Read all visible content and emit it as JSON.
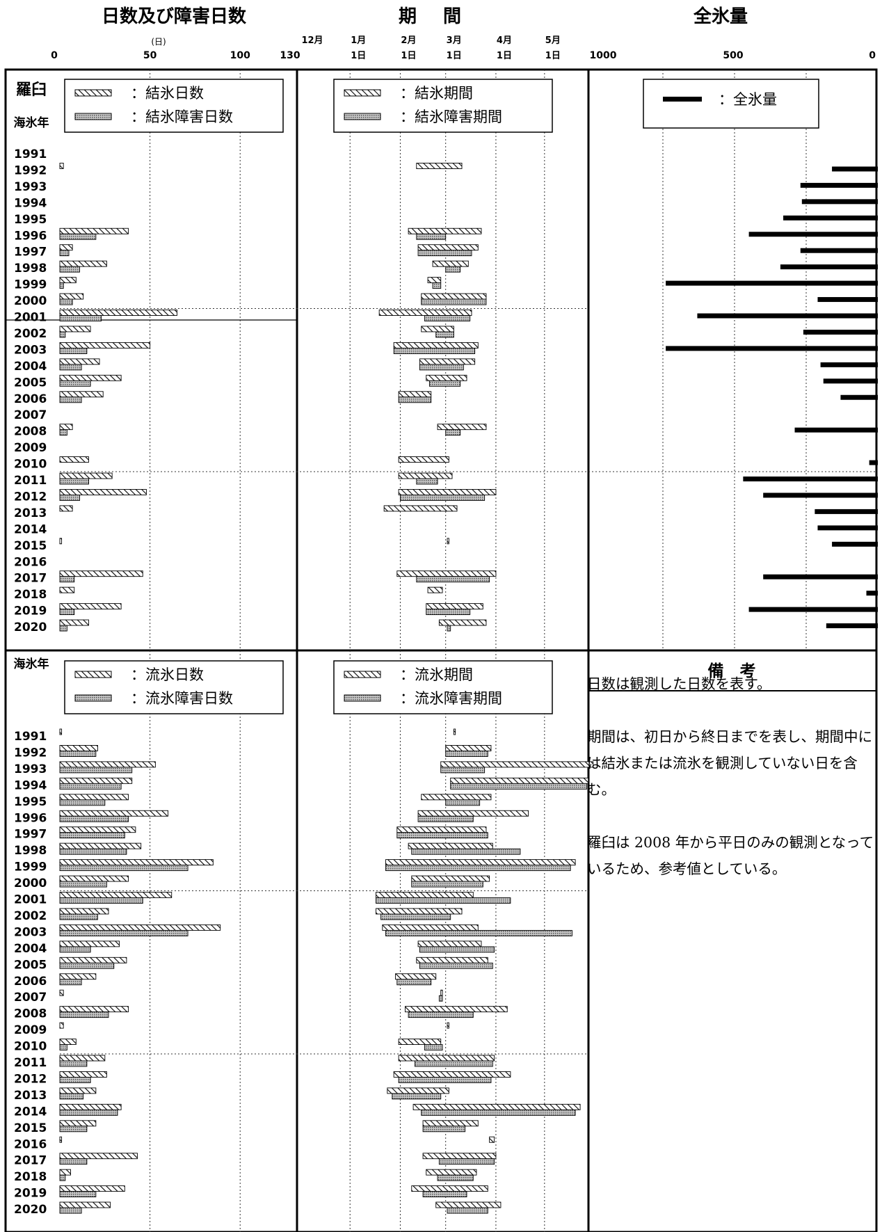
{
  "headings": {
    "days": "日数及び障害日数",
    "period_a": "期",
    "period_b": "間",
    "total": "全氷量"
  },
  "axis_labels": {
    "days_unit": "(日)",
    "days_ticks": [
      "0",
      "50",
      "100",
      "130"
    ],
    "month_ticks": [
      [
        "12月",
        ""
      ],
      [
        "1月",
        "1日"
      ],
      [
        "2月",
        "1日"
      ],
      [
        "3月",
        "1日"
      ],
      [
        "4月",
        "1日"
      ],
      [
        "5月",
        "1日"
      ]
    ],
    "total_ticks": [
      "1000",
      "500",
      "0"
    ]
  },
  "row_labels": {
    "station": "羅臼",
    "season_year_top": "海氷年",
    "season_year_bottom": "海氷年"
  },
  "legends": {
    "freeze_days": "：結氷日数",
    "freeze_obstacle_days": "：結氷障害日数",
    "freeze_period": "：結氷期間",
    "freeze_obstacle_period": "：結氷障害期間",
    "total_ice": "：全氷量",
    "drift_days": "：流氷日数",
    "drift_obstacle_days": "：流氷障害日数",
    "drift_period": "：流氷期間",
    "drift_obstacle_period": "：流氷障害期間"
  },
  "remarks": {
    "title": "備　考",
    "line1": "日数は観測した日数を表す。",
    "line2": "期間は、初日から終日までを表し、期間中には結氷または流氷を観測していない日を含む。",
    "line3": "羅臼は 2008 年から平日のみの観測となっているため、参考値としている。"
  },
  "colors": {
    "frame": "#000000",
    "grid": "#333333",
    "hatch_stroke": "#000000",
    "obstacle_fill": "#8a8a8a"
  },
  "chart_data": [
    {
      "type": "bar",
      "title": "日数及び障害日数 — 結氷",
      "xlabel": "(日)",
      "xlim": [
        0,
        130
      ],
      "categories": [
        "1991",
        "1992",
        "1993",
        "1994",
        "1995",
        "1996",
        "1997",
        "1998",
        "1999",
        "2000",
        "2001",
        "2002",
        "2003",
        "2004",
        "2005",
        "2006",
        "2007",
        "2008",
        "2009",
        "2010",
        "2011",
        "2012",
        "2013",
        "2014",
        "2015",
        "2016",
        "2017",
        "2018",
        "2019",
        "2020"
      ],
      "series": [
        {
          "name": "結氷日数",
          "values": [
            0,
            2,
            0,
            0,
            0,
            38,
            7,
            26,
            9,
            13,
            65,
            17,
            50,
            22,
            34,
            24,
            0,
            7,
            0,
            16,
            29,
            48,
            7,
            0,
            1,
            0,
            46,
            8,
            34,
            16
          ]
        },
        {
          "name": "結氷障害日数",
          "values": [
            0,
            0,
            0,
            0,
            0,
            20,
            5,
            11,
            2,
            7,
            23,
            3,
            15,
            12,
            17,
            12,
            0,
            4,
            0,
            0,
            16,
            11,
            0,
            0,
            0,
            0,
            8,
            0,
            8,
            4
          ]
        }
      ]
    },
    {
      "type": "bar",
      "title": "期間 — 結氷",
      "xlabel": "",
      "xlim": [
        "12-01",
        "05-31"
      ],
      "categories": [
        "1991",
        "1992",
        "1993",
        "1994",
        "1995",
        "1996",
        "1997",
        "1998",
        "1999",
        "2000",
        "2001",
        "2002",
        "2003",
        "2004",
        "2005",
        "2006",
        "2007",
        "2008",
        "2009",
        "2010",
        "2011",
        "2012",
        "2013",
        "2014",
        "2015",
        "2016",
        "2017",
        "2018",
        "2019",
        "2020"
      ],
      "series": [
        {
          "name": "結氷期間",
          "values": [
            null,
            [
              "02-11",
              "03-11"
            ],
            null,
            null,
            null,
            [
              "02-06",
              "03-23"
            ],
            [
              "02-12",
              "03-21"
            ],
            [
              "02-21",
              "03-15"
            ],
            [
              "02-18",
              "02-26"
            ],
            [
              "02-14",
              "03-26"
            ],
            [
              "01-19",
              "03-17"
            ],
            [
              "02-14",
              "03-06"
            ],
            [
              "01-28",
              "03-21"
            ],
            [
              "02-13",
              "03-19"
            ],
            [
              "02-17",
              "03-14"
            ],
            [
              "01-31",
              "02-20"
            ],
            null,
            [
              "02-24",
              "03-26"
            ],
            null,
            [
              "01-31",
              "03-03"
            ],
            [
              "01-31",
              "03-05"
            ],
            [
              "01-31",
              "04-01"
            ],
            [
              "01-22",
              "03-08"
            ],
            null,
            [
              "03-02",
              "03-03"
            ],
            null,
            [
              "01-30",
              "04-01"
            ],
            [
              "02-18",
              "02-27"
            ],
            [
              "02-17",
              "03-24"
            ],
            [
              "02-25",
              "03-26"
            ]
          ]
        },
        {
          "name": "結氷障害期間",
          "values": [
            null,
            null,
            null,
            null,
            null,
            [
              "02-11",
              "03-01"
            ],
            [
              "02-12",
              "03-17"
            ],
            [
              "03-01",
              "03-10"
            ],
            [
              "02-21",
              "02-26"
            ],
            [
              "02-14",
              "03-26"
            ],
            [
              "02-16",
              "03-16"
            ],
            [
              "02-23",
              "03-06"
            ],
            [
              "01-28",
              "03-19"
            ],
            [
              "02-13",
              "03-12"
            ],
            [
              "02-19",
              "03-10"
            ],
            [
              "01-31",
              "02-20"
            ],
            null,
            [
              "03-01",
              "03-10"
            ],
            null,
            null,
            [
              "02-11",
              "02-24"
            ],
            [
              "02-01",
              "03-25"
            ],
            null,
            null,
            null,
            null,
            [
              "02-11",
              "03-28"
            ],
            null,
            [
              "02-17",
              "03-16"
            ],
            [
              "03-02",
              "03-04"
            ]
          ]
        }
      ]
    },
    {
      "type": "bar",
      "title": "全氷量",
      "xlabel": "",
      "xlim": [
        1000,
        0
      ],
      "categories": [
        "1991",
        "1992",
        "1993",
        "1994",
        "1995",
        "1996",
        "1997",
        "1998",
        "1999",
        "2000",
        "2001",
        "2002",
        "2003",
        "2004",
        "2005",
        "2006",
        "2007",
        "2008",
        "2009",
        "2010",
        "2011",
        "2012",
        "2013",
        "2014",
        "2015",
        "2016",
        "2017",
        "2018",
        "2019",
        "2020"
      ],
      "series": [
        {
          "name": "全氷量",
          "values": [
            0,
            160,
            270,
            265,
            330,
            450,
            270,
            340,
            740,
            210,
            630,
            260,
            740,
            200,
            190,
            130,
            0,
            290,
            0,
            30,
            470,
            400,
            220,
            210,
            160,
            0,
            400,
            40,
            450,
            180
          ]
        }
      ]
    },
    {
      "type": "bar",
      "title": "日数及び障害日数 — 流氷",
      "xlabel": "(日)",
      "xlim": [
        0,
        130
      ],
      "categories": [
        "1991",
        "1992",
        "1993",
        "1994",
        "1995",
        "1996",
        "1997",
        "1998",
        "1999",
        "2000",
        "2001",
        "2002",
        "2003",
        "2004",
        "2005",
        "2006",
        "2007",
        "2008",
        "2009",
        "2010",
        "2011",
        "2012",
        "2013",
        "2014",
        "2015",
        "2016",
        "2017",
        "2018",
        "2019",
        "2020"
      ],
      "series": [
        {
          "name": "流氷日数",
          "values": [
            1,
            21,
            53,
            40,
            38,
            60,
            42,
            45,
            85,
            38,
            62,
            27,
            89,
            33,
            37,
            20,
            2,
            38,
            2,
            9,
            25,
            26,
            20,
            34,
            20,
            1,
            43,
            6,
            36,
            28
          ]
        },
        {
          "name": "流氷障害日数",
          "values": [
            0,
            20,
            40,
            34,
            25,
            38,
            36,
            37,
            71,
            26,
            46,
            21,
            71,
            17,
            30,
            12,
            0,
            27,
            0,
            4,
            15,
            17,
            13,
            32,
            15,
            0,
            15,
            3,
            20,
            12
          ]
        }
      ]
    },
    {
      "type": "bar",
      "title": "期間 — 流氷",
      "xlabel": "",
      "xlim": [
        "12-01",
        "05-31"
      ],
      "categories": [
        "1991",
        "1992",
        "1993",
        "1994",
        "1995",
        "1996",
        "1997",
        "1998",
        "1999",
        "2000",
        "2001",
        "2002",
        "2003",
        "2004",
        "2005",
        "2006",
        "2007",
        "2008",
        "2009",
        "2010",
        "2011",
        "2012",
        "2013",
        "2014",
        "2015",
        "2016",
        "2017",
        "2018",
        "2019",
        "2020"
      ],
      "series": [
        {
          "name": "流氷期間",
          "values": [
            [
              "03-06",
              "03-07"
            ],
            [
              "03-01",
              "03-29"
            ],
            [
              "02-26",
              "05-31"
            ],
            [
              "03-04",
              "05-28"
            ],
            [
              "02-14",
              "03-29"
            ],
            [
              "02-12",
              "04-21"
            ],
            [
              "01-30",
              "03-26"
            ],
            [
              "02-06",
              "03-30"
            ],
            [
              "01-23",
              "05-20"
            ],
            [
              "02-08",
              "03-28"
            ],
            [
              "01-17",
              "03-18"
            ],
            [
              "01-17",
              "03-11"
            ],
            [
              "01-21",
              "03-21"
            ],
            [
              "02-12",
              "03-23"
            ],
            [
              "02-11",
              "03-27"
            ],
            [
              "01-29",
              "02-23"
            ],
            [
              "02-26",
              "02-27"
            ],
            [
              "02-04",
              "04-08"
            ],
            [
              "03-02",
              "03-03"
            ],
            [
              "01-31",
              "02-26"
            ],
            [
              "01-31",
              "03-31"
            ],
            [
              "01-28",
              "04-10"
            ],
            [
              "01-24",
              "03-03"
            ],
            [
              "02-09",
              "05-23"
            ],
            [
              "02-15",
              "03-21"
            ],
            [
              "03-28",
              "03-31"
            ],
            [
              "02-15",
              "04-01"
            ],
            [
              "02-17",
              "03-20"
            ],
            [
              "02-08",
              "03-27"
            ],
            [
              "02-23",
              "04-04"
            ]
          ]
        },
        {
          "name": "流氷障害期間",
          "values": [
            null,
            [
              "03-01",
              "03-27"
            ],
            [
              "02-26",
              "03-25"
            ],
            [
              "03-04",
              "05-27"
            ],
            [
              "03-01",
              "03-22"
            ],
            [
              "02-12",
              "03-18"
            ],
            [
              "01-30",
              "03-27"
            ],
            [
              "02-08",
              "04-16"
            ],
            [
              "01-23",
              "05-17"
            ],
            [
              "02-08",
              "03-24"
            ],
            [
              "01-17",
              "04-10"
            ],
            [
              "01-20",
              "03-04"
            ],
            [
              "01-23",
              "05-18"
            ],
            [
              "02-13",
              "03-31"
            ],
            [
              "02-13",
              "03-30"
            ],
            [
              "01-30",
              "02-20"
            ],
            [
              "02-25",
              "02-27"
            ],
            [
              "02-06",
              "03-18"
            ],
            null,
            [
              "02-16",
              "02-27"
            ],
            [
              "02-10",
              "03-30"
            ],
            [
              "01-31",
              "03-29"
            ],
            [
              "01-27",
              "02-26"
            ],
            [
              "02-14",
              "05-20"
            ],
            [
              "02-15",
              "03-13"
            ],
            null,
            [
              "02-25",
              "03-31"
            ],
            [
              "02-24",
              "03-18"
            ],
            [
              "02-15",
              "03-14"
            ],
            [
              "03-02",
              "03-27"
            ]
          ]
        }
      ]
    }
  ]
}
